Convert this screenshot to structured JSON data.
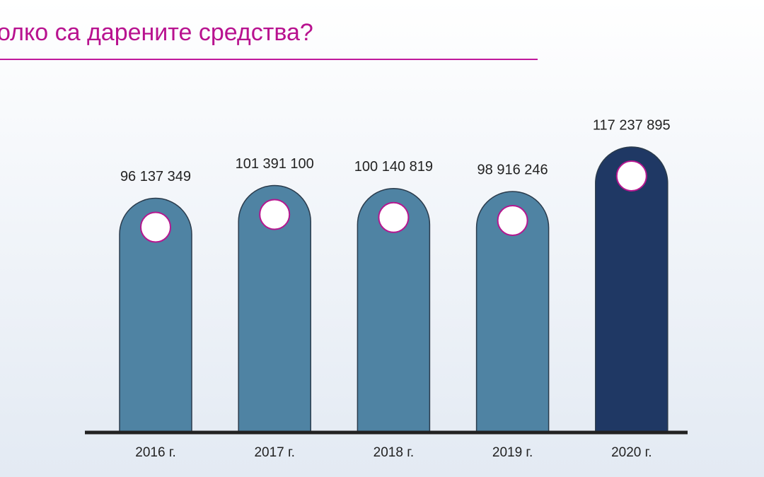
{
  "chart_data": {
    "type": "bar",
    "title": "олко са дарените средства?",
    "categories": [
      "2016 г.",
      "2017 г.",
      "2018 г.",
      "2019 г.",
      "2020 г."
    ],
    "values": [
      96137349,
      101391100,
      100140819,
      98916246,
      117237895
    ],
    "value_labels": [
      "96 137 349",
      "101 391 100",
      "100 140 819",
      "98 916 246",
      "117 237 895"
    ],
    "colors": [
      "#4f83a3",
      "#4f83a3",
      "#4f83a3",
      "#4f83a3",
      "#1f3864"
    ]
  }
}
